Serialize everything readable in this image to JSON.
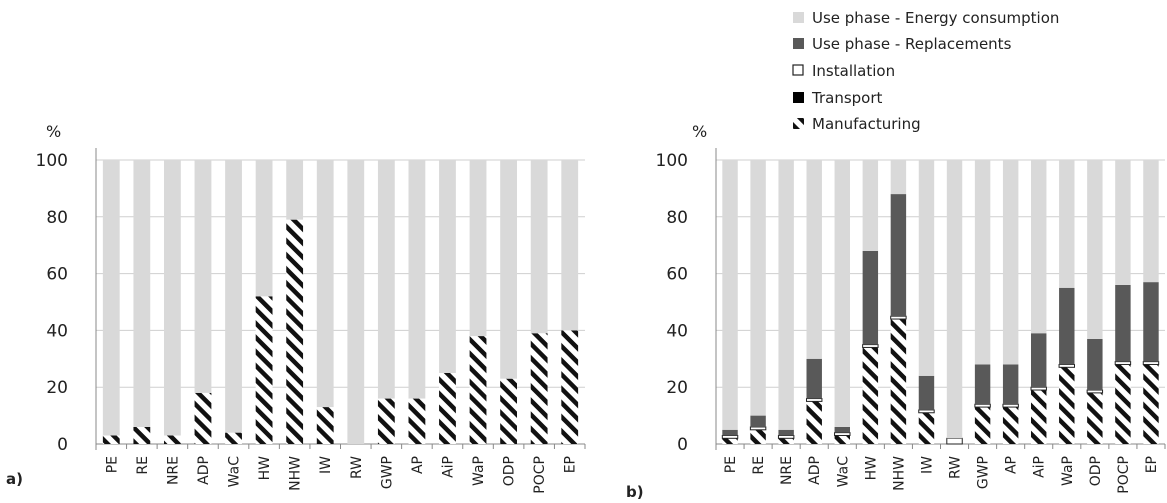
{
  "chart_data": [
    {
      "type": "bar",
      "panel_label": "a)",
      "ylabel": "%",
      "ylim": [
        0,
        100
      ],
      "yticks": [
        "0",
        "20",
        "40",
        "60",
        "80",
        "100"
      ],
      "grid": true,
      "categories": [
        "PE",
        "RE",
        "NRE",
        "ADP",
        "WaC",
        "HW",
        "NHW",
        "IW",
        "RW",
        "GWP",
        "AP",
        "AiP",
        "WaP",
        "ODP",
        "POCP",
        "EP"
      ],
      "series": [
        {
          "name": "Manufacturing",
          "values": [
            3,
            6,
            3,
            18,
            4,
            52,
            79,
            13,
            0,
            16,
            16,
            25,
            38,
            23,
            39,
            40
          ]
        },
        {
          "name": "Transport",
          "values": [
            0,
            0,
            0,
            0,
            0,
            0,
            0,
            0,
            0,
            0,
            0,
            0,
            0,
            0,
            0,
            0
          ]
        },
        {
          "name": "Installation",
          "values": [
            0,
            0,
            0,
            0,
            0,
            0,
            0,
            0,
            0,
            0,
            0,
            0,
            0,
            0,
            0,
            0
          ]
        },
        {
          "name": "Use phase - Replacements",
          "values": [
            0,
            0,
            0,
            0,
            0,
            0,
            0,
            0,
            0,
            0,
            0,
            0,
            0,
            0,
            0,
            0
          ]
        },
        {
          "name": "Use phase - Energy consumption",
          "values": [
            97,
            94,
            97,
            82,
            96,
            48,
            21,
            87,
            100,
            84,
            84,
            75,
            62,
            77,
            61,
            60
          ]
        }
      ]
    },
    {
      "type": "bar",
      "panel_label": "b)",
      "ylabel": "%",
      "ylim": [
        0,
        100
      ],
      "yticks": [
        "0",
        "20",
        "40",
        "60",
        "80",
        "100"
      ],
      "grid": true,
      "categories": [
        "PE",
        "RE",
        "NRE",
        "ADP",
        "WaC",
        "HW",
        "NHW",
        "IW",
        "RW",
        "GWP",
        "AP",
        "AiP",
        "WaP",
        "ODP",
        "POCP",
        "EP"
      ],
      "series": [
        {
          "name": "Manufacturing",
          "values": [
            2,
            5,
            2,
            15,
            3,
            34,
            44,
            11,
            0,
            13,
            13,
            19,
            27,
            18,
            28,
            28
          ]
        },
        {
          "name": "Transport",
          "values": [
            0,
            0,
            0,
            0,
            0,
            0,
            0,
            0,
            0,
            0,
            0,
            0,
            0,
            0,
            0,
            0
          ]
        },
        {
          "name": "Installation",
          "values": [
            1,
            1,
            1,
            1,
            1,
            1,
            1,
            1,
            2,
            1,
            1,
            1,
            1,
            1,
            1,
            1
          ]
        },
        {
          "name": "Use phase - Replacements",
          "values": [
            2,
            4,
            2,
            14,
            2,
            33,
            43,
            12,
            0,
            14,
            14,
            19,
            27,
            18,
            27,
            28
          ]
        },
        {
          "name": "Use phase - Energy consumption",
          "values": [
            95,
            90,
            95,
            70,
            94,
            32,
            12,
            76,
            98,
            72,
            72,
            61,
            45,
            63,
            44,
            43
          ]
        }
      ]
    }
  ],
  "legend": {
    "placement": "top-right",
    "items": [
      {
        "label": "Use phase - Energy consumption",
        "color": "#d9d9d9"
      },
      {
        "label": "Use phase - Replacements",
        "color": "#595959"
      },
      {
        "label": "Installation",
        "color": "#ffffff"
      },
      {
        "label": "Transport",
        "color": "#000000"
      },
      {
        "label": "Manufacturing",
        "color": "hatch"
      }
    ]
  }
}
